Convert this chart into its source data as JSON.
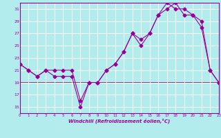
{
  "line1_x": [
    0,
    1,
    2,
    3,
    4,
    5,
    6,
    7,
    8,
    9,
    10,
    11,
    12,
    13,
    14,
    15,
    16,
    17,
    18,
    19,
    20,
    21,
    22,
    23
  ],
  "line1_y": [
    22,
    21,
    20,
    21,
    20,
    20,
    20,
    15,
    19,
    19,
    21,
    22,
    24,
    27,
    25,
    27,
    30,
    31,
    32,
    30,
    30,
    29,
    21,
    19
  ],
  "line2_x": [
    0,
    1,
    2,
    3,
    4,
    5,
    6,
    7,
    8,
    9,
    10,
    11,
    12,
    13,
    14,
    15,
    16,
    17,
    18,
    19,
    20,
    21,
    22,
    23
  ],
  "line2_y": [
    22,
    21,
    20,
    21,
    21,
    21,
    21,
    16,
    19,
    19,
    21,
    22,
    24,
    27,
    26,
    27,
    30,
    32,
    31,
    31,
    30,
    28,
    21,
    19
  ],
  "line3_x": [
    0,
    23
  ],
  "line3_y": [
    19,
    19
  ],
  "color": "#990099",
  "bg_color": "#b3ecec",
  "grid_color": "#ffffff",
  "xlabel": "Windchill (Refroidissement éolien,°C)",
  "ylim": [
    14,
    32
  ],
  "xlim": [
    0,
    23
  ],
  "yticks": [
    15,
    17,
    19,
    21,
    23,
    25,
    27,
    29,
    31
  ],
  "xticks": [
    0,
    1,
    2,
    3,
    4,
    5,
    6,
    7,
    8,
    9,
    10,
    11,
    12,
    13,
    14,
    15,
    16,
    17,
    18,
    19,
    20,
    21,
    22,
    23
  ]
}
